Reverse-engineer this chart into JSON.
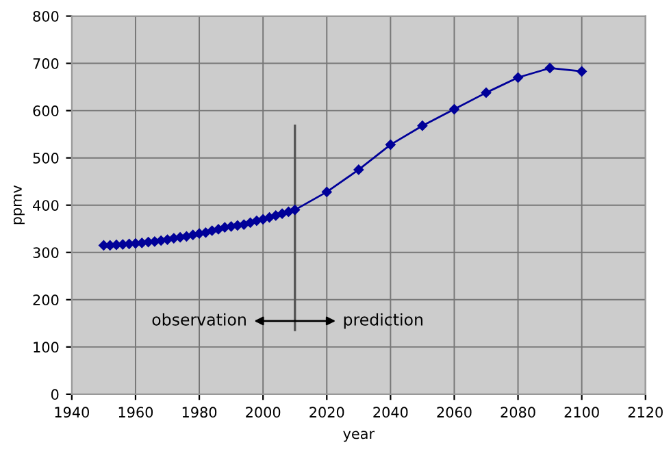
{
  "chart_data": {
    "type": "line",
    "xlabel": "year",
    "ylabel": "ppmv",
    "x": [
      1950,
      1952,
      1954,
      1956,
      1958,
      1960,
      1962,
      1964,
      1966,
      1968,
      1970,
      1972,
      1974,
      1976,
      1978,
      1980,
      1982,
      1984,
      1986,
      1988,
      1990,
      1992,
      1994,
      1996,
      1998,
      2000,
      2002,
      2004,
      2006,
      2008,
      2010,
      2020,
      2030,
      2040,
      2050,
      2060,
      2070,
      2080,
      2090,
      2100
    ],
    "series": [
      {
        "color": "#000099",
        "values": [
          315,
          315,
          316,
          317,
          318,
          319,
          320,
          322,
          323,
          325,
          327,
          330,
          332,
          334,
          337,
          340,
          342,
          346,
          349,
          353,
          355,
          357,
          359,
          363,
          367,
          370,
          374,
          378,
          382,
          386,
          390,
          428,
          475,
          528,
          568,
          603,
          638,
          670,
          690,
          683
        ]
      }
    ],
    "xlim": [
      1940,
      2120
    ],
    "xticks": [
      1940,
      1960,
      1980,
      2000,
      2020,
      2040,
      2060,
      2080,
      2100,
      2120
    ],
    "ylim": [
      0,
      800
    ],
    "yticks": [
      0,
      100,
      200,
      300,
      400,
      500,
      600,
      700,
      800
    ],
    "grid": true,
    "marker": "diamond",
    "line_style": "solid",
    "ref_lines": [
      {
        "axis": "x",
        "value": 2010,
        "color": "#555555"
      }
    ],
    "annotations": [
      "observation",
      "prediction"
    ]
  }
}
